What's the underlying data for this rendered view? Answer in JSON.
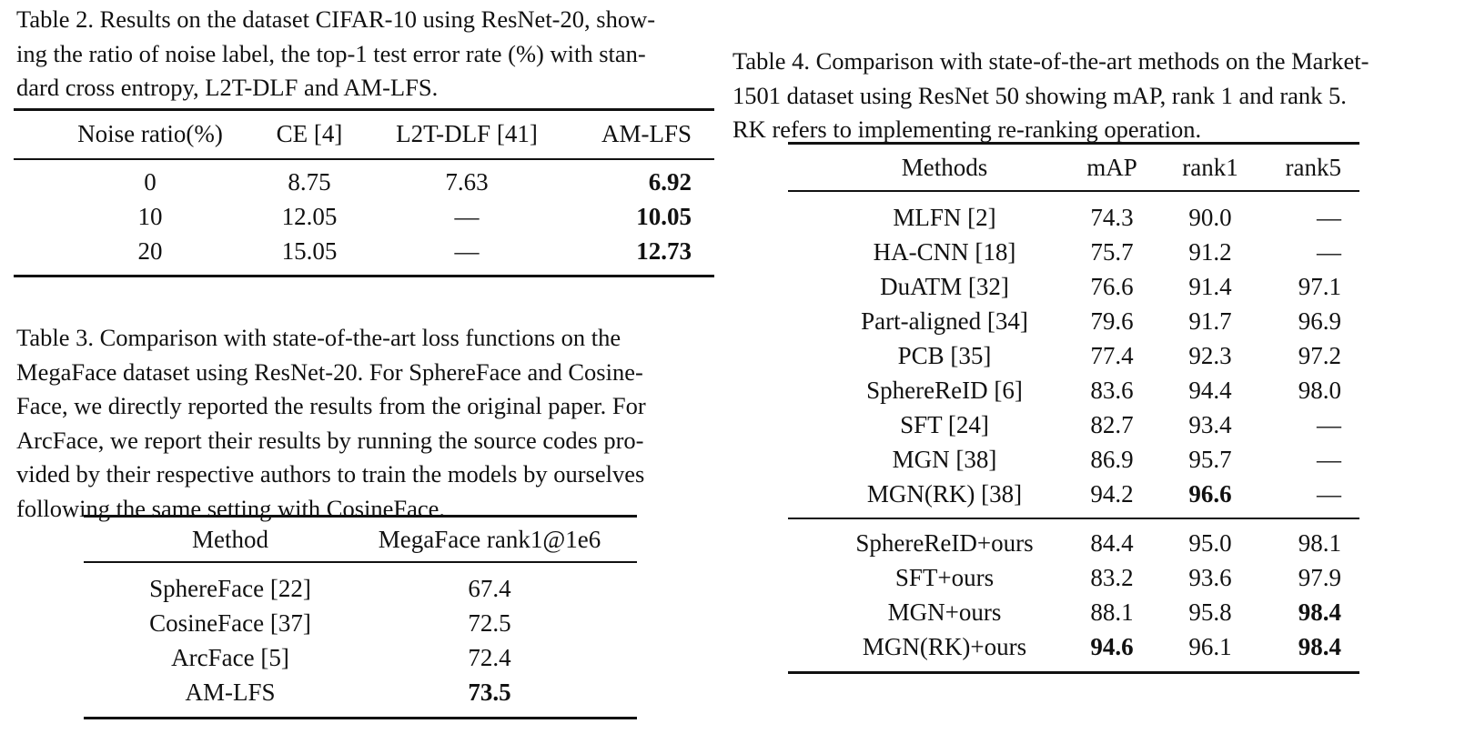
{
  "table2": {
    "caption": "Table 2. Results on the dataset CIFAR-10 using ResNet-20, showing the ratio of noise label, the top-1 test error rate (%) with standard cross entropy, L2T-DLF and AM-LFS.",
    "caption_lines": [
      "Table 2. Results on the dataset CIFAR-10 using ResNet-20, show-",
      "ing the ratio of noise label, the top-1 test error rate (%) with stan-",
      "dard cross entropy, L2T-DLF and AM-LFS."
    ],
    "headers": [
      "Noise ratio(%)",
      "CE [4]",
      "L2T-DLF [41]",
      "AM-LFS"
    ],
    "rows": [
      [
        {
          "v": "0"
        },
        {
          "v": "8.75"
        },
        {
          "v": "7.63"
        },
        {
          "v": "6.92",
          "b": true
        }
      ],
      [
        {
          "v": "10"
        },
        {
          "v": "12.05"
        },
        {
          "v": "—"
        },
        {
          "v": "10.05",
          "b": true
        }
      ],
      [
        {
          "v": "20"
        },
        {
          "v": "15.05"
        },
        {
          "v": "—"
        },
        {
          "v": "12.73",
          "b": true
        }
      ]
    ]
  },
  "table3": {
    "caption_lines": [
      "Table 3. Comparison with state-of-the-art loss functions on the",
      "MegaFace dataset using ResNet-20. For SphereFace and Cosine-",
      "Face, we directly reported the results from the original paper. For",
      "ArcFace, we report their results by running the source codes pro-",
      "vided by their respective authors to train the models by ourselves",
      "following the same setting with CosineFace."
    ],
    "headers": [
      "Method",
      "MegaFace rank1@1e6"
    ],
    "rows": [
      [
        {
          "v": "SphereFace [22]"
        },
        {
          "v": "67.4"
        }
      ],
      [
        {
          "v": "CosineFace [37]"
        },
        {
          "v": "72.5"
        }
      ],
      [
        {
          "v": "ArcFace [5]"
        },
        {
          "v": "72.4"
        }
      ],
      [
        {
          "v": "AM-LFS"
        },
        {
          "v": "73.5",
          "b": true
        }
      ]
    ]
  },
  "table4": {
    "caption_lines": [
      "Table 4. Comparison with state-of-the-art methods on the Market-",
      "1501 dataset using ResNet 50 showing mAP, rank 1 and rank 5.",
      "RK refers to implementing re-ranking operation."
    ],
    "headers": [
      "Methods",
      "mAP",
      "rank1",
      "rank5"
    ],
    "rows": [
      [
        {
          "v": "MLFN [2]"
        },
        {
          "v": "74.3"
        },
        {
          "v": "90.0"
        },
        {
          "v": "—"
        }
      ],
      [
        {
          "v": "HA-CNN [18]"
        },
        {
          "v": "75.7"
        },
        {
          "v": "91.2"
        },
        {
          "v": "—"
        }
      ],
      [
        {
          "v": "DuATM [32]"
        },
        {
          "v": "76.6"
        },
        {
          "v": "91.4"
        },
        {
          "v": "97.1"
        }
      ],
      [
        {
          "v": "Part-aligned [34]"
        },
        {
          "v": "79.6"
        },
        {
          "v": "91.7"
        },
        {
          "v": "96.9"
        }
      ],
      [
        {
          "v": "PCB [35]"
        },
        {
          "v": "77.4"
        },
        {
          "v": "92.3"
        },
        {
          "v": "97.2"
        }
      ],
      [
        {
          "v": "SphereReID [6]"
        },
        {
          "v": "83.6"
        },
        {
          "v": "94.4"
        },
        {
          "v": "98.0"
        }
      ],
      [
        {
          "v": "SFT [24]"
        },
        {
          "v": "82.7"
        },
        {
          "v": "93.4"
        },
        {
          "v": "—"
        }
      ],
      [
        {
          "v": "MGN [38]"
        },
        {
          "v": "86.9"
        },
        {
          "v": "95.7"
        },
        {
          "v": "—"
        }
      ],
      [
        {
          "v": "MGN(RK) [38]"
        },
        {
          "v": "94.2"
        },
        {
          "v": "96.6",
          "b": true
        },
        {
          "v": "—"
        }
      ]
    ],
    "rows_ours": [
      [
        {
          "v": "SphereReID+ours"
        },
        {
          "v": "84.4"
        },
        {
          "v": "95.0"
        },
        {
          "v": "98.1"
        }
      ],
      [
        {
          "v": "SFT+ours"
        },
        {
          "v": "83.2"
        },
        {
          "v": "93.6"
        },
        {
          "v": "97.9"
        }
      ],
      [
        {
          "v": "MGN+ours"
        },
        {
          "v": "88.1"
        },
        {
          "v": "95.8"
        },
        {
          "v": "98.4",
          "b": true
        }
      ],
      [
        {
          "v": "MGN(RK)+ours"
        },
        {
          "v": "94.6",
          "b": true
        },
        {
          "v": "96.1"
        },
        {
          "v": "98.4",
          "b": true
        }
      ]
    ]
  }
}
